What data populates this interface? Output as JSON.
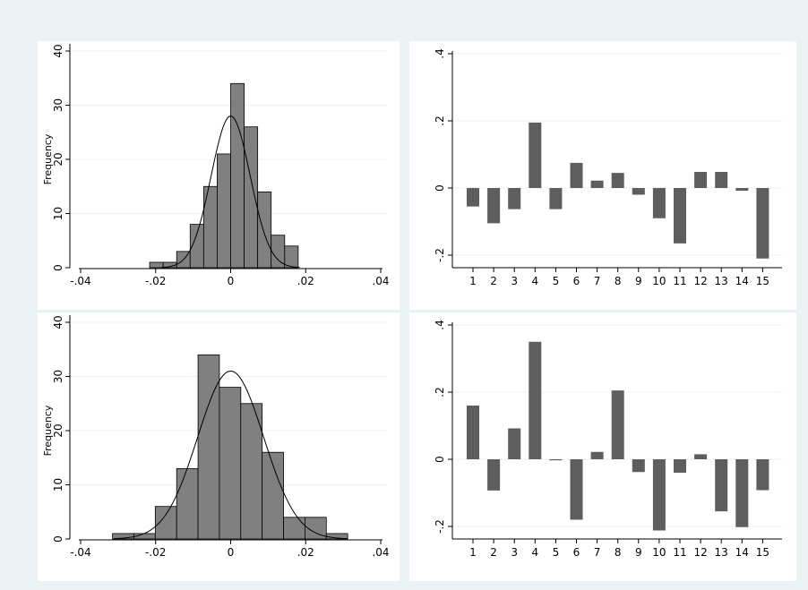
{
  "colors": {
    "outer_background": "#eaf2f3",
    "plot_background": "#ffffff",
    "bar_fill": "#808080",
    "bar_stroke": "#000000",
    "bar_plot_fill": "#5e5e5e",
    "gridline": "#eaf2f3",
    "axis": "#000000"
  },
  "chart_data": [
    {
      "id": "hist_top",
      "type": "bar",
      "subtype": "histogram",
      "ylabel": "Frequency",
      "xlabel": "",
      "xlim": [
        -0.04,
        0.04
      ],
      "ylim": [
        0,
        40
      ],
      "xticks": [
        -0.04,
        -0.02,
        0,
        0.02,
        0.04
      ],
      "xtick_labels": [
        "-.04",
        "-.02",
        "0",
        ".02",
        ".04"
      ],
      "yticks": [
        0,
        10,
        20,
        30,
        40
      ],
      "ytick_labels": [
        "0",
        "10",
        "20",
        "30",
        "40"
      ],
      "bin_width": 0.0036,
      "bins": [
        {
          "start": -0.0216,
          "count": 1
        },
        {
          "start": -0.018,
          "count": 1
        },
        {
          "start": -0.0144,
          "count": 3
        },
        {
          "start": -0.0108,
          "count": 8
        },
        {
          "start": -0.0072,
          "count": 15
        },
        {
          "start": -0.0036,
          "count": 21
        },
        {
          "start": 0.0,
          "count": 34
        },
        {
          "start": 0.0036,
          "count": 26
        },
        {
          "start": 0.0072,
          "count": 14
        },
        {
          "start": 0.0108,
          "count": 6
        },
        {
          "start": 0.0144,
          "count": 4
        }
      ],
      "normal_curve": {
        "mean": 0.0,
        "peak": 28,
        "sd": 0.0052
      },
      "grid": true
    },
    {
      "id": "bars_top",
      "type": "bar",
      "xlabel": "",
      "ylabel": "",
      "categories": [
        "1",
        "2",
        "3",
        "4",
        "5",
        "6",
        "7",
        "8",
        "9",
        "10",
        "11",
        "12",
        "13",
        "14",
        "15"
      ],
      "values": [
        -0.055,
        -0.105,
        -0.063,
        0.195,
        -0.063,
        0.075,
        0.022,
        0.045,
        -0.02,
        -0.09,
        -0.165,
        0.048,
        0.048,
        -0.008,
        -0.21
      ],
      "ylim": [
        -0.2,
        0.4
      ],
      "yticks": [
        -0.2,
        0,
        0.2,
        0.4
      ],
      "ytick_labels": [
        "-.2",
        "0",
        ".2",
        ".4"
      ],
      "grid": true
    },
    {
      "id": "hist_bottom",
      "type": "bar",
      "subtype": "histogram",
      "ylabel": "Frequency",
      "xlabel": "",
      "xlim": [
        -0.04,
        0.04
      ],
      "ylim": [
        0,
        40
      ],
      "xticks": [
        -0.04,
        -0.02,
        0,
        0.02,
        0.04
      ],
      "xtick_labels": [
        "-.04",
        "-.02",
        "0",
        ".02",
        ".04"
      ],
      "yticks": [
        0,
        10,
        20,
        30,
        40
      ],
      "ytick_labels": [
        "0",
        "10",
        "20",
        "30",
        "40"
      ],
      "bin_width": 0.0057,
      "bins": [
        {
          "start": -0.0315,
          "count": 1
        },
        {
          "start": -0.0258,
          "count": 1
        },
        {
          "start": -0.0201,
          "count": 6
        },
        {
          "start": -0.0144,
          "count": 13
        },
        {
          "start": -0.0087,
          "count": 34
        },
        {
          "start": -0.003,
          "count": 28
        },
        {
          "start": 0.0027,
          "count": 25
        },
        {
          "start": 0.0084,
          "count": 16
        },
        {
          "start": 0.0141,
          "count": 4
        },
        {
          "start": 0.0198,
          "count": 4
        },
        {
          "start": 0.0255,
          "count": 1
        }
      ],
      "normal_curve": {
        "mean": 0.0,
        "peak": 31,
        "sd": 0.0088
      },
      "grid": true
    },
    {
      "id": "bars_bottom",
      "type": "bar",
      "xlabel": "",
      "ylabel": "",
      "categories": [
        "1",
        "2",
        "3",
        "4",
        "5",
        "6",
        "7",
        "8",
        "9",
        "10",
        "11",
        "12",
        "13",
        "14",
        "15"
      ],
      "values": [
        0.16,
        -0.093,
        0.092,
        0.35,
        -0.003,
        -0.18,
        0.022,
        0.205,
        -0.038,
        -0.212,
        -0.04,
        0.015,
        -0.155,
        -0.202,
        -0.092
      ],
      "ylim": [
        -0.2,
        0.4
      ],
      "yticks": [
        -0.2,
        0,
        0.2,
        0.4
      ],
      "ytick_labels": [
        "-.2",
        "0",
        ".2",
        ".4"
      ],
      "grid": true
    }
  ]
}
